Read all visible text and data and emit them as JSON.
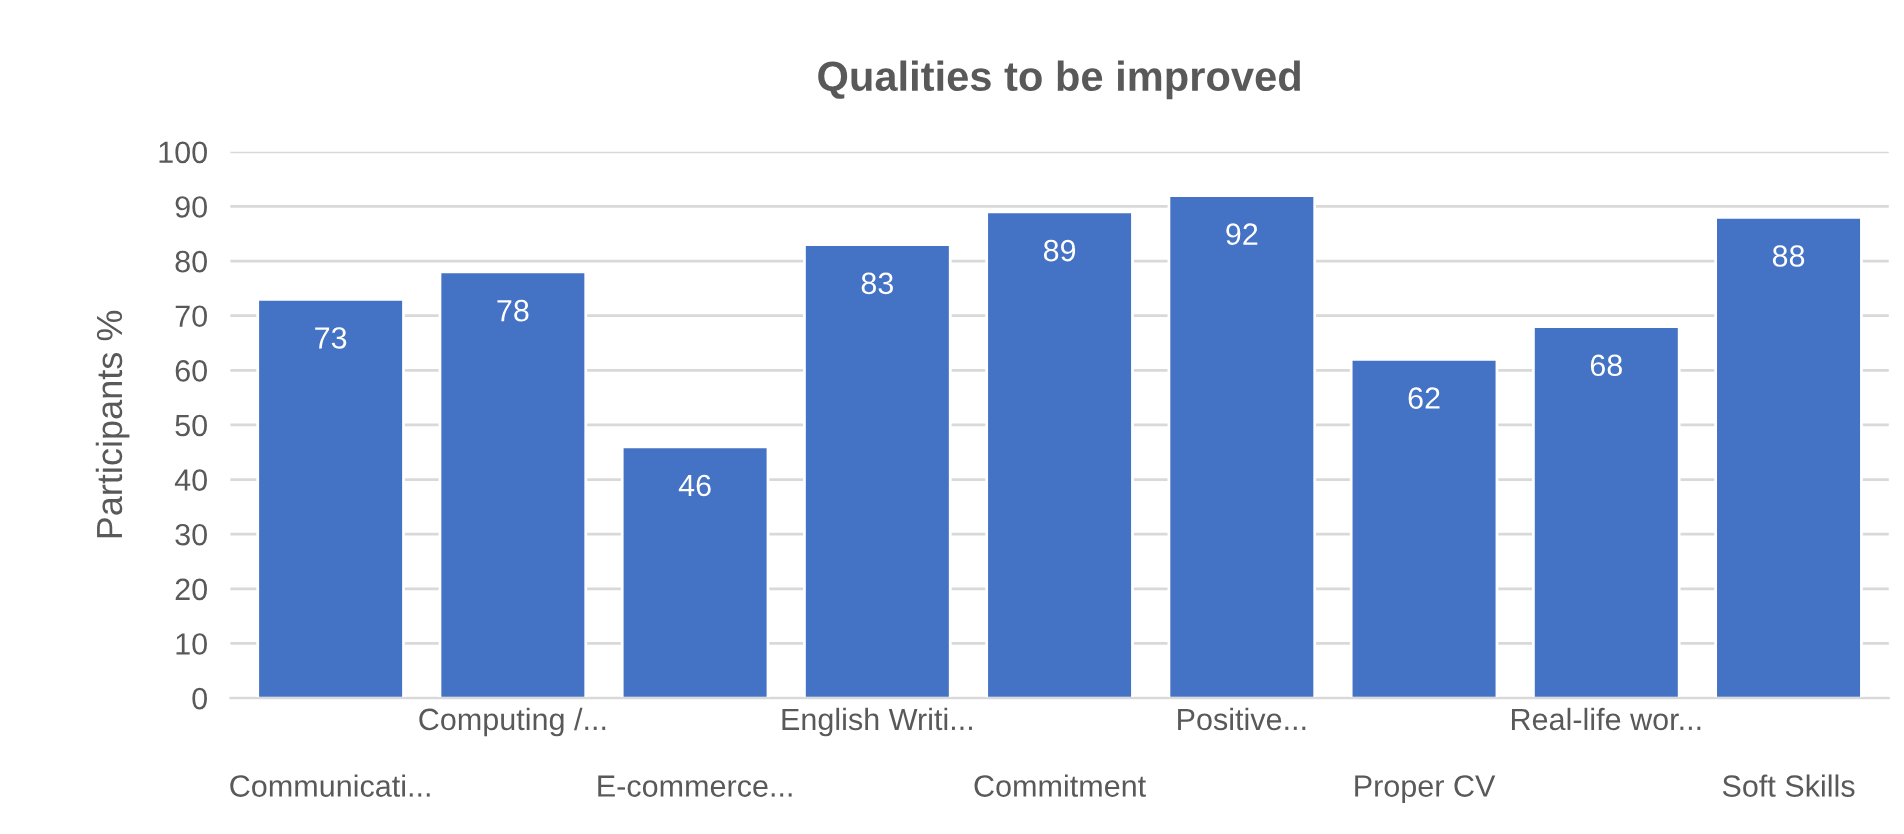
{
  "chart_data": {
    "type": "bar",
    "title": "Qualities to be improved",
    "ylabel": "Participants %",
    "categories": [
      "Communicati...",
      "Computing /...",
      "E-commerce...",
      "English Writi...",
      "Commitment",
      "Positive...",
      "Proper CV",
      "Real-life wor...",
      "Soft Skills"
    ],
    "values": [
      73,
      78,
      46,
      83,
      89,
      92,
      62,
      68,
      88
    ],
    "color": "#4472c4",
    "ylim": [
      0,
      100
    ],
    "yticks": [
      0,
      10,
      20,
      30,
      40,
      50,
      60,
      70,
      80,
      90,
      100
    ],
    "grid": "y",
    "data_labels": true
  }
}
